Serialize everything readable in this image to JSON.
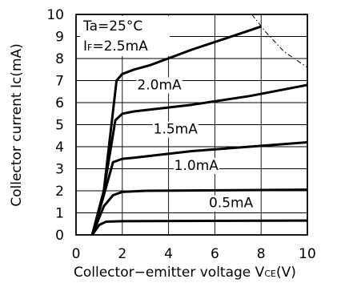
{
  "chart_data": {
    "type": "line",
    "title": "",
    "xlabel": "Collector−emitter voltage V",
    "xlabel_sub": "CE",
    "xlabel_unit": "(V)",
    "ylabel": "Collector current Ic(mA)",
    "xlim": [
      0,
      10
    ],
    "ylim": [
      0,
      10
    ],
    "xticks": [
      "0",
      "2",
      "4",
      "6",
      "8",
      "10"
    ],
    "yticks": [
      "0",
      "1",
      "2",
      "3",
      "4",
      "5",
      "6",
      "7",
      "8",
      "9",
      "10"
    ],
    "grid": true,
    "annotations": {
      "ta": "Ta=25°C",
      "if_prefix": "I",
      "if_sub": "F",
      "if_value": "=2.5mA"
    },
    "series": [
      {
        "name": "2.5mA",
        "label": "",
        "points": [
          [
            0.7,
            0
          ],
          [
            1.2,
            2.0
          ],
          [
            1.75,
            7.0
          ],
          [
            2.0,
            7.3
          ],
          [
            2.5,
            7.5
          ],
          [
            3.2,
            7.7
          ],
          [
            5.0,
            8.4
          ],
          [
            7.0,
            9.1
          ],
          [
            8.0,
            9.45
          ]
        ]
      },
      {
        "name": "2.0mA",
        "label": "2.0mA",
        "points": [
          [
            0.7,
            0
          ],
          [
            1.2,
            2.0
          ],
          [
            1.7,
            5.2
          ],
          [
            2.0,
            5.5
          ],
          [
            2.5,
            5.6
          ],
          [
            5.0,
            5.9
          ],
          [
            7.5,
            6.3
          ],
          [
            10.0,
            6.8
          ]
        ]
      },
      {
        "name": "1.5mA",
        "label": "1.5mA",
        "points": [
          [
            0.7,
            0
          ],
          [
            1.2,
            1.8
          ],
          [
            1.6,
            3.3
          ],
          [
            2.0,
            3.45
          ],
          [
            2.5,
            3.5
          ],
          [
            5.0,
            3.8
          ],
          [
            7.5,
            4.0
          ],
          [
            10.0,
            4.2
          ]
        ]
      },
      {
        "name": "1.0mA",
        "label": "1.0mA",
        "points": [
          [
            0.7,
            0
          ],
          [
            1.2,
            1.3
          ],
          [
            1.6,
            1.8
          ],
          [
            2.0,
            1.95
          ],
          [
            3.0,
            2.0
          ],
          [
            10.0,
            2.05
          ]
        ]
      },
      {
        "name": "0.5mA",
        "label": "0.5mA",
        "points": [
          [
            0.7,
            0
          ],
          [
            1.0,
            0.45
          ],
          [
            1.3,
            0.6
          ],
          [
            2.0,
            0.62
          ],
          [
            10.0,
            0.65
          ]
        ]
      }
    ],
    "curve_label_positions": [
      {
        "series": "2.0mA",
        "x": 3.6,
        "y": 6.6
      },
      {
        "series": "1.5mA",
        "x": 4.3,
        "y": 4.6
      },
      {
        "series": "1.0mA",
        "x": 5.2,
        "y": 2.95
      },
      {
        "series": "0.5mA",
        "x": 6.7,
        "y": 1.25
      }
    ],
    "power_limit_curve": {
      "style": "dash-dot",
      "points": [
        [
          7.6,
          10.0
        ],
        [
          8.2,
          9.2
        ],
        [
          9.0,
          8.3
        ],
        [
          10.0,
          7.6
        ]
      ]
    }
  }
}
